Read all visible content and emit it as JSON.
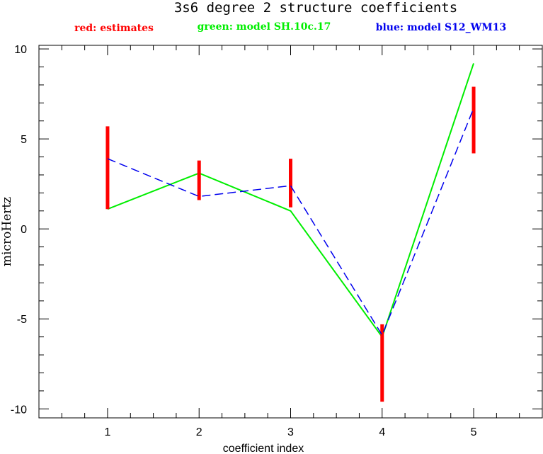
{
  "chart_data": {
    "type": "line",
    "title": "3s6 degree 2 structure coefficients",
    "legend": [
      {
        "label": "red: estimates",
        "color": "#ff0000"
      },
      {
        "label": "green: model SH.10c.17",
        "color": "#00ee00"
      },
      {
        "label": "blue: model S12_WM13",
        "color": "#0000ee"
      }
    ],
    "legend_placement": "top",
    "xlabel": "coefficient index",
    "ylabel": "microHertz",
    "xlim": [
      0.25,
      5.75
    ],
    "ylim": [
      -10.5,
      10.2
    ],
    "x_ticks": [
      1,
      2,
      3,
      4,
      5
    ],
    "y_ticks": [
      10,
      5,
      0,
      -5,
      -10
    ],
    "x_tick_labels": [
      "1",
      "2",
      "3",
      "4",
      "5"
    ],
    "y_tick_labels": [
      "10",
      "5",
      "0",
      "-5",
      "-10"
    ],
    "grid": false,
    "estimates": {
      "color": "#ff0000",
      "x": [
        1,
        2,
        3,
        4,
        5
      ],
      "low": [
        1.1,
        1.6,
        1.2,
        -9.6,
        4.2
      ],
      "high": [
        5.7,
        3.8,
        3.9,
        -5.3,
        7.9
      ]
    },
    "series": [
      {
        "color": "#00ee00",
        "style": "solid",
        "x": [
          1,
          2,
          3,
          4,
          5
        ],
        "values": [
          1.1,
          3.1,
          1.0,
          -6.0,
          9.2
        ]
      },
      {
        "color": "#0000ee",
        "style": "dashed",
        "x": [
          1,
          2,
          3,
          4,
          5
        ],
        "values": [
          3.9,
          1.8,
          2.4,
          -5.9,
          6.7
        ]
      }
    ]
  }
}
